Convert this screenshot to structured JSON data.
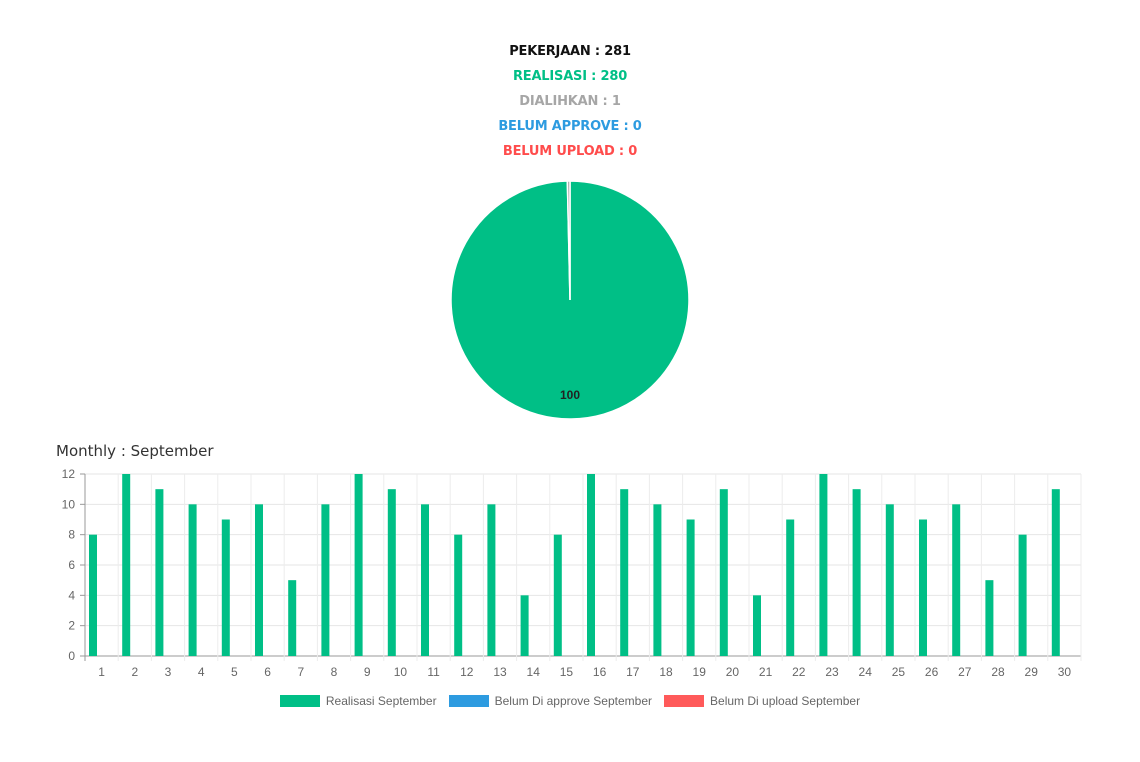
{
  "stats": {
    "pekerjaan": "PEKERJAAN : 281",
    "realisasi": "REALISASI : 280",
    "dialihkan": "DIALIHKAN : 1",
    "belum_approve": "BELUM APPROVE : 0",
    "belum_upload": "BELUM UPLOAD : 0"
  },
  "colors": {
    "realisasi": "#00bf86",
    "dialihkan": "#a6a6a6",
    "belum_approve": "#2d9be0",
    "belum_upload": "#ff5a5a"
  },
  "monthly_title": "Monthly : September",
  "chart_data": [
    {
      "type": "pie",
      "slices": [
        {
          "name": "Realisasi",
          "value": 280,
          "color": "#00bf86"
        },
        {
          "name": "Dialihkan",
          "value": 1,
          "color": "#a6a6a6"
        }
      ],
      "data_label": "100"
    },
    {
      "type": "bar",
      "categories": [
        "1",
        "2",
        "3",
        "4",
        "5",
        "6",
        "7",
        "8",
        "9",
        "10",
        "11",
        "12",
        "13",
        "14",
        "15",
        "16",
        "17",
        "18",
        "19",
        "20",
        "21",
        "22",
        "23",
        "24",
        "25",
        "26",
        "27",
        "28",
        "29",
        "30"
      ],
      "series": [
        {
          "name": "Realisasi September",
          "color": "#00bf86",
          "values": [
            8,
            12,
            11,
            10,
            9,
            10,
            5,
            10,
            12,
            11,
            10,
            8,
            10,
            4,
            8,
            12,
            11,
            10,
            9,
            11,
            4,
            9,
            12,
            11,
            10,
            9,
            10,
            5,
            8,
            11
          ]
        },
        {
          "name": "Belum Di approve September",
          "color": "#2d9be0",
          "values": [
            0,
            0,
            0,
            0,
            0,
            0,
            0,
            0,
            0,
            0,
            0,
            0,
            0,
            0,
            0,
            0,
            0,
            0,
            0,
            0,
            0,
            0,
            0,
            0,
            0,
            0,
            0,
            0,
            0,
            0
          ]
        },
        {
          "name": "Belum Di upload September",
          "color": "#ff5a5a",
          "values": [
            0,
            0,
            0,
            0,
            0,
            0,
            0,
            0,
            0,
            0,
            0,
            0,
            0,
            0,
            0,
            0,
            0,
            0,
            0,
            0,
            0,
            0,
            0,
            0,
            0,
            0,
            0,
            0,
            0,
            0
          ]
        }
      ],
      "ylim": [
        0,
        12
      ],
      "yticks": [
        0,
        2,
        4,
        6,
        8,
        10,
        12
      ],
      "grid": true,
      "legend_position": "bottom"
    }
  ]
}
